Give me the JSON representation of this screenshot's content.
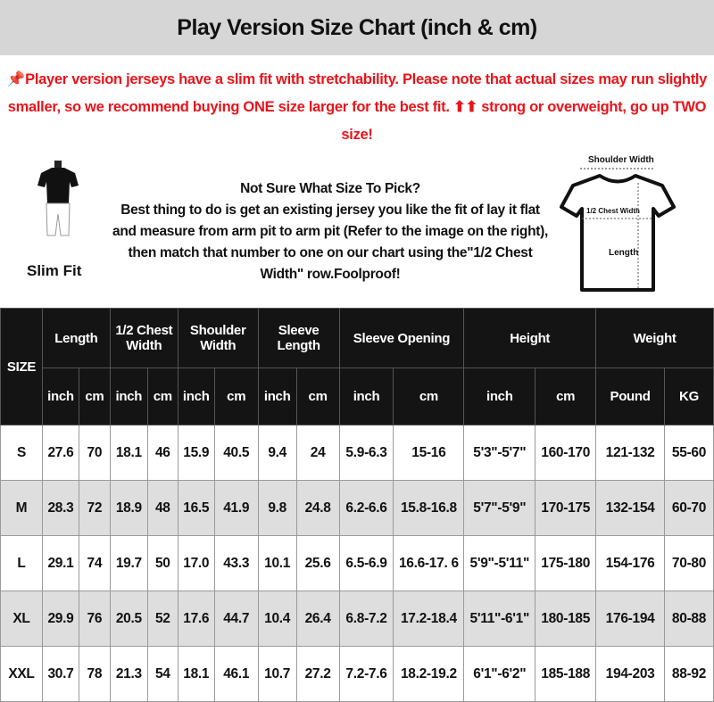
{
  "title": "Play Version Size Chart (inch & cm)",
  "notice": {
    "icon": "pushpin-icon",
    "pin": "📌",
    "text": "Player version jerseys have a slim fit with stretchability. Please note that actual sizes may run slightly smaller, so we recommend buying ONE size larger for the best fit. ⬆⬆ strong or overweight, go up TWO size!",
    "color": "#e8141b"
  },
  "info": {
    "heading": "Not Sure What Size To Pick?",
    "body": "Best thing to do is get an existing jersey you like the fit of lay it flat and measure from arm pit to arm pit (Refer to the image on the right), then match that number to one on our chart using the\"1/2 Chest Width\" row.Foolproof!"
  },
  "fit_label": "Slim Fit",
  "diagram": {
    "shoulder": "Shoulder Width",
    "chest": "1/2 Chest Width",
    "length": "Length"
  },
  "table": {
    "size_header": "SIZE",
    "groups": [
      "Length",
      "1/2 Chest Width",
      "Shoulder Width",
      "Sleeve Length",
      "Sleeve Opening",
      "Height",
      "Weight"
    ],
    "units": [
      "inch",
      "cm",
      "inch",
      "cm",
      "inch",
      "cm",
      "inch",
      "cm",
      "inch",
      "cm",
      "inch",
      "cm",
      "Pound",
      "KG"
    ],
    "rows": [
      [
        "S",
        "27.6",
        "70",
        "18.1",
        "46",
        "15.9",
        "40.5",
        "9.4",
        "24",
        "5.9-6.3",
        "15-16",
        "5'3\"-5'7\"",
        "160-170",
        "121-132",
        "55-60"
      ],
      [
        "M",
        "28.3",
        "72",
        "18.9",
        "48",
        "16.5",
        "41.9",
        "9.8",
        "24.8",
        "6.2-6.6",
        "15.8-16.8",
        "5'7\"-5'9\"",
        "170-175",
        "132-154",
        "60-70"
      ],
      [
        "L",
        "29.1",
        "74",
        "19.7",
        "50",
        "17.0",
        "43.3",
        "10.1",
        "25.6",
        "6.5-6.9",
        "16.6-17. 6",
        "5'9\"-5'11\"",
        "175-180",
        "154-176",
        "70-80"
      ],
      [
        "XL",
        "29.9",
        "76",
        "20.5",
        "52",
        "17.6",
        "44.7",
        "10.4",
        "26.4",
        "6.8-7.2",
        "17.2-18.4",
        "5'11\"-6'1\"",
        "180-185",
        "176-194",
        "80-88"
      ],
      [
        "XXL",
        "30.7",
        "78",
        "21.3",
        "54",
        "18.1",
        "46.1",
        "10.7",
        "27.2",
        "7.2-7.6",
        "18.2-19.2",
        "6'1\"-6'2\"",
        "185-188",
        "194-203",
        "88-92"
      ]
    ]
  }
}
